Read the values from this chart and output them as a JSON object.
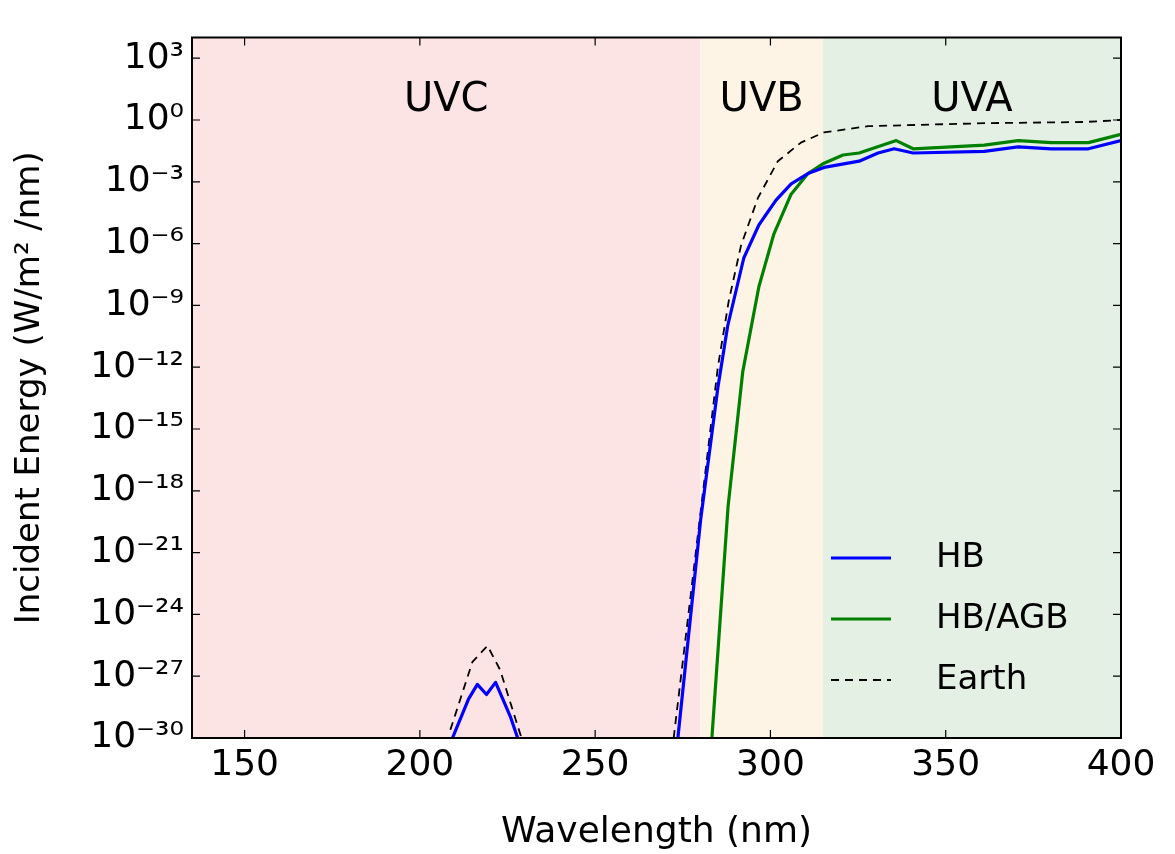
{
  "chart_data": {
    "type": "line",
    "xlabel": "Wavelength (nm)",
    "ylabel": "Incident Energy (W/m² /nm)",
    "xlim": [
      135,
      400
    ],
    "xticks": [
      150,
      200,
      250,
      300,
      350,
      400
    ],
    "ylim": [
      1e-30,
      10000.0
    ],
    "log": "y",
    "yticks": [
      {
        "value": 1e-30,
        "label": "10⁻³⁰"
      },
      {
        "value": 1e-27,
        "label": "10⁻²⁷"
      },
      {
        "value": 1e-24,
        "label": "10⁻²⁴"
      },
      {
        "value": 1e-21,
        "label": "10⁻²¹"
      },
      {
        "value": 1e-18,
        "label": "10⁻¹⁸"
      },
      {
        "value": 1e-15,
        "label": "10⁻¹⁵"
      },
      {
        "value": 1e-12,
        "label": "10⁻¹²"
      },
      {
        "value": 1e-09,
        "label": "10⁻⁹"
      },
      {
        "value": 1e-06,
        "label": "10⁻⁶"
      },
      {
        "value": 0.001,
        "label": "10⁻³"
      },
      {
        "value": 1,
        "label": "10⁰"
      },
      {
        "value": 1000.0,
        "label": "10³"
      }
    ],
    "legend": "bottom right",
    "bands": [
      {
        "axis": "x",
        "from": 135,
        "to": 280,
        "label": "UVC",
        "color": "#fde4e4"
      },
      {
        "axis": "x",
        "from": 280,
        "to": 315,
        "label": "UVB",
        "color": "#fdf4e6"
      },
      {
        "axis": "x",
        "from": 315,
        "to": 400,
        "label": "UVA",
        "color": "#e4f0e4"
      }
    ],
    "series": [
      {
        "name": "HB",
        "color": "#0000ff",
        "line_style": "solid",
        "x": [
          209.3,
          213.9,
          216.4,
          219,
          221.6,
          225.9,
          227.9,
          250,
          273.6,
          280.1,
          285,
          287.8,
          292.4,
          296.7,
          301.6,
          305.9,
          310.7,
          315.3,
          325.3,
          330.7,
          335.3,
          340.7,
          361,
          370.7,
          380.1,
          390.7,
          400
        ],
        "values": [
          1e-30,
          8e-29,
          4e-28,
          1.3e-28,
          5e-28,
          1e-29,
          1e-30,
          null,
          1e-30,
          4e-20,
          1e-13,
          1e-10,
          2e-07,
          8e-06,
          0.00013,
          0.0008,
          0.0025,
          0.005,
          0.01,
          0.025,
          0.04,
          0.025,
          0.03,
          0.05,
          0.04,
          0.04,
          0.1
        ]
      },
      {
        "name": "HB/AGB",
        "color": "#008000",
        "line_style": "solid",
        "x": [
          283.3,
          287.9,
          292.1,
          296.7,
          301,
          305.9,
          310.7,
          315.3,
          320.7,
          325.3,
          335.9,
          340.7,
          361,
          370.7,
          380.1,
          390.7,
          400
        ],
        "values": [
          1e-30,
          1.6e-19,
          6e-13,
          8e-09,
          3e-06,
          0.00025,
          0.0025,
          0.008,
          0.02,
          0.025,
          0.1,
          0.04,
          0.06,
          0.1,
          0.08,
          0.08,
          0.2
        ]
      },
      {
        "name": "Earth",
        "color": "#000000",
        "line_style": "dashed",
        "x": [
          208.7,
          215,
          219.3,
          222.9,
          228.1,
          229,
          250,
          272.4,
          285,
          288.1,
          291.6,
          296.4,
          302.1,
          308.7,
          315.3,
          327.9,
          361,
          389.6,
          400
        ],
        "values": [
          2.5e-30,
          5e-27,
          3e-26,
          2e-27,
          3e-30,
          1e-30,
          null,
          1e-30,
          1e-12,
          1.6e-09,
          8e-07,
          0.00016,
          0.01,
          0.08,
          0.25,
          0.5,
          0.7,
          0.8,
          1
        ]
      }
    ]
  }
}
